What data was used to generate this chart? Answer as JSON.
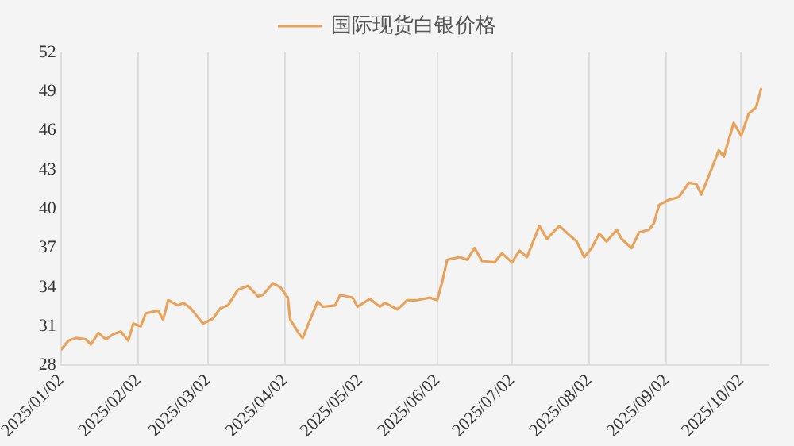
{
  "chart_data": {
    "type": "line",
    "legend": "top",
    "grid": "x",
    "marker": "none",
    "line_style": "solid",
    "x": [
      "2025-01-02",
      "2025-01-05",
      "2025-01-08",
      "2025-01-12",
      "2025-01-14",
      "2025-01-17",
      "2025-01-20",
      "2025-01-23",
      "2025-01-26",
      "2025-01-29",
      "2025-01-31",
      "2025-02-03",
      "2025-02-05",
      "2025-02-10",
      "2025-02-12",
      "2025-02-14",
      "2025-02-18",
      "2025-02-20",
      "2025-02-23",
      "2025-02-28",
      "2025-03-04",
      "2025-03-07",
      "2025-03-10",
      "2025-03-14",
      "2025-03-18",
      "2025-03-22",
      "2025-03-24",
      "2025-03-28",
      "2025-03-31",
      "2025-04-03",
      "2025-04-04",
      "2025-04-08",
      "2025-04-09",
      "2025-04-12",
      "2025-04-15",
      "2025-04-17",
      "2025-04-22",
      "2025-04-24",
      "2025-04-29",
      "2025-05-01",
      "2025-05-06",
      "2025-05-10",
      "2025-05-12",
      "2025-05-17",
      "2025-05-21",
      "2025-05-25",
      "2025-05-30",
      "2025-06-02",
      "2025-06-04",
      "2025-06-06",
      "2025-06-11",
      "2025-06-14",
      "2025-06-17",
      "2025-06-20",
      "2025-06-25",
      "2025-06-28",
      "2025-07-02",
      "2025-07-05",
      "2025-07-08",
      "2025-07-13",
      "2025-07-16",
      "2025-07-21",
      "2025-07-25",
      "2025-07-28",
      "2025-07-31",
      "2025-08-03",
      "2025-08-06",
      "2025-08-09",
      "2025-08-13",
      "2025-08-15",
      "2025-08-19",
      "2025-08-22",
      "2025-08-26",
      "2025-08-28",
      "2025-08-30",
      "2025-09-03",
      "2025-09-07",
      "2025-09-11",
      "2025-09-14",
      "2025-09-16",
      "2025-09-20",
      "2025-09-23",
      "2025-09-25",
      "2025-09-29",
      "2025-10-02",
      "2025-10-05",
      "2025-10-08",
      "2025-10-10"
    ],
    "series": [
      {
        "name": "国际现货白银价格",
        "color": "#e8a25a",
        "values": [
          29.2,
          29.9,
          30.1,
          30.0,
          29.6,
          30.5,
          30.0,
          30.4,
          30.6,
          29.9,
          31.2,
          31.0,
          32.0,
          32.2,
          31.5,
          33.0,
          32.6,
          32.8,
          32.4,
          31.2,
          31.6,
          32.4,
          32.6,
          33.8,
          34.1,
          33.3,
          33.4,
          34.3,
          34.0,
          33.2,
          31.5,
          30.3,
          30.1,
          31.5,
          32.9,
          32.5,
          32.6,
          33.4,
          33.2,
          32.5,
          33.1,
          32.5,
          32.8,
          32.3,
          33.0,
          33.0,
          33.2,
          33.0,
          34.4,
          36.1,
          36.3,
          36.1,
          37.0,
          36.0,
          35.9,
          36.6,
          35.9,
          36.8,
          36.3,
          38.7,
          37.7,
          38.7,
          38.0,
          37.5,
          36.3,
          37.0,
          38.1,
          37.5,
          38.4,
          37.7,
          37.0,
          38.2,
          38.4,
          38.9,
          40.3,
          40.7,
          40.9,
          42.0,
          41.9,
          41.1,
          43.0,
          44.5,
          44.0,
          46.6,
          45.6,
          47.3,
          47.8,
          49.2
        ]
      }
    ],
    "xlim": [
      "2025-01-02",
      "2025-10-13"
    ],
    "xticks": [
      {
        "value": "2025-01-02",
        "label": "2025/01/02"
      },
      {
        "value": "2025-02-02",
        "label": "2025/02/02"
      },
      {
        "value": "2025-03-02",
        "label": "2025/03/02"
      },
      {
        "value": "2025-04-02",
        "label": "2025/04/02"
      },
      {
        "value": "2025-05-02",
        "label": "2025/05/02"
      },
      {
        "value": "2025-06-02",
        "label": "2025/06/02"
      },
      {
        "value": "2025-07-02",
        "label": "2025/07/02"
      },
      {
        "value": "2025-08-02",
        "label": "2025/08/02"
      },
      {
        "value": "2025-09-02",
        "label": "2025/09/02"
      },
      {
        "value": "2025-10-02",
        "label": "2025/10/02"
      }
    ],
    "ylim": [
      28,
      52
    ],
    "yticks": [
      28,
      31,
      34,
      37,
      40,
      43,
      46,
      49,
      52
    ]
  }
}
